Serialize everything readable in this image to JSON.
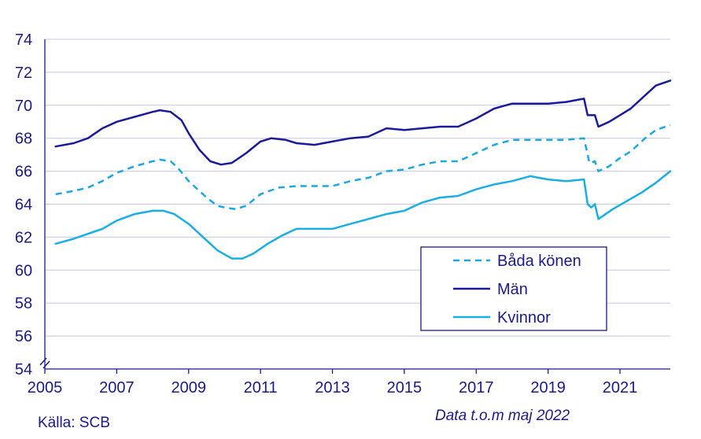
{
  "source": "Källa: SCB",
  "note": "Data t.o.m maj 2022",
  "colors": {
    "axis_text": "#1a1a8c",
    "grid": "#c5c5e6",
    "bada": "#1aa7e6",
    "man": "#1a1a9c",
    "kvinnor": "#1aaee6"
  },
  "chart_data": {
    "type": "line",
    "title": "",
    "xlabel": "",
    "ylabel": "",
    "xlim": [
      2005,
      2022.4
    ],
    "ylim": [
      54,
      74
    ],
    "x_ticks": [
      "2005",
      "2007",
      "2009",
      "2011",
      "2013",
      "2015",
      "2017",
      "2019",
      "2021"
    ],
    "y_ticks": [
      "54",
      "56",
      "58",
      "60",
      "62",
      "64",
      "66",
      "68",
      "70",
      "72",
      "74"
    ],
    "grid": true,
    "axis_break": true,
    "legend_position": "bottom-right",
    "series": [
      {
        "name": "Båda könen",
        "style": "dashed",
        "points": [
          [
            2005.3,
            64.6
          ],
          [
            2005.8,
            64.8
          ],
          [
            2006.2,
            65.0
          ],
          [
            2006.6,
            65.4
          ],
          [
            2007.0,
            65.9
          ],
          [
            2007.5,
            66.3
          ],
          [
            2008.0,
            66.6
          ],
          [
            2008.2,
            66.7
          ],
          [
            2008.5,
            66.6
          ],
          [
            2008.7,
            66.2
          ],
          [
            2009.0,
            65.4
          ],
          [
            2009.5,
            64.4
          ],
          [
            2009.8,
            63.9
          ],
          [
            2010.0,
            63.8
          ],
          [
            2010.3,
            63.7
          ],
          [
            2010.6,
            63.9
          ],
          [
            2011.0,
            64.6
          ],
          [
            2011.5,
            65.0
          ],
          [
            2012.0,
            65.1
          ],
          [
            2012.5,
            65.1
          ],
          [
            2013.0,
            65.1
          ],
          [
            2013.5,
            65.4
          ],
          [
            2014.0,
            65.6
          ],
          [
            2014.5,
            66.0
          ],
          [
            2015.0,
            66.1
          ],
          [
            2015.5,
            66.4
          ],
          [
            2016.0,
            66.6
          ],
          [
            2016.5,
            66.6
          ],
          [
            2017.0,
            67.1
          ],
          [
            2017.5,
            67.6
          ],
          [
            2018.0,
            67.9
          ],
          [
            2018.5,
            67.9
          ],
          [
            2019.0,
            67.9
          ],
          [
            2019.5,
            67.9
          ],
          [
            2020.0,
            68.0
          ],
          [
            2020.15,
            66.5
          ],
          [
            2020.3,
            66.6
          ],
          [
            2020.4,
            66.0
          ],
          [
            2020.7,
            66.3
          ],
          [
            2021.0,
            66.8
          ],
          [
            2021.3,
            67.2
          ],
          [
            2021.7,
            68.0
          ],
          [
            2022.0,
            68.5
          ],
          [
            2022.4,
            68.8
          ]
        ]
      },
      {
        "name": "Män",
        "style": "solid",
        "points": [
          [
            2005.3,
            67.5
          ],
          [
            2005.8,
            67.7
          ],
          [
            2006.2,
            68.0
          ],
          [
            2006.6,
            68.6
          ],
          [
            2007.0,
            69.0
          ],
          [
            2007.5,
            69.3
          ],
          [
            2008.0,
            69.6
          ],
          [
            2008.2,
            69.7
          ],
          [
            2008.5,
            69.6
          ],
          [
            2008.8,
            69.1
          ],
          [
            2009.0,
            68.3
          ],
          [
            2009.3,
            67.3
          ],
          [
            2009.6,
            66.6
          ],
          [
            2009.9,
            66.4
          ],
          [
            2010.2,
            66.5
          ],
          [
            2010.6,
            67.1
          ],
          [
            2011.0,
            67.8
          ],
          [
            2011.3,
            68.0
          ],
          [
            2011.7,
            67.9
          ],
          [
            2012.0,
            67.7
          ],
          [
            2012.5,
            67.6
          ],
          [
            2013.0,
            67.8
          ],
          [
            2013.5,
            68.0
          ],
          [
            2014.0,
            68.1
          ],
          [
            2014.5,
            68.6
          ],
          [
            2015.0,
            68.5
          ],
          [
            2015.5,
            68.6
          ],
          [
            2016.0,
            68.7
          ],
          [
            2016.5,
            68.7
          ],
          [
            2017.0,
            69.2
          ],
          [
            2017.5,
            69.8
          ],
          [
            2018.0,
            70.1
          ],
          [
            2018.5,
            70.1
          ],
          [
            2019.0,
            70.1
          ],
          [
            2019.5,
            70.2
          ],
          [
            2020.0,
            70.4
          ],
          [
            2020.1,
            69.4
          ],
          [
            2020.3,
            69.4
          ],
          [
            2020.4,
            68.7
          ],
          [
            2020.7,
            69.0
          ],
          [
            2021.0,
            69.4
          ],
          [
            2021.3,
            69.8
          ],
          [
            2021.7,
            70.6
          ],
          [
            2022.0,
            71.2
          ],
          [
            2022.4,
            71.5
          ]
        ]
      },
      {
        "name": "Kvinnor",
        "style": "solid",
        "points": [
          [
            2005.3,
            61.6
          ],
          [
            2005.8,
            61.9
          ],
          [
            2006.2,
            62.2
          ],
          [
            2006.6,
            62.5
          ],
          [
            2007.0,
            63.0
          ],
          [
            2007.5,
            63.4
          ],
          [
            2008.0,
            63.6
          ],
          [
            2008.3,
            63.6
          ],
          [
            2008.6,
            63.4
          ],
          [
            2009.0,
            62.8
          ],
          [
            2009.5,
            61.8
          ],
          [
            2009.8,
            61.2
          ],
          [
            2010.2,
            60.7
          ],
          [
            2010.5,
            60.7
          ],
          [
            2010.8,
            61.0
          ],
          [
            2011.2,
            61.6
          ],
          [
            2011.6,
            62.1
          ],
          [
            2012.0,
            62.5
          ],
          [
            2012.5,
            62.5
          ],
          [
            2013.0,
            62.5
          ],
          [
            2013.5,
            62.8
          ],
          [
            2014.0,
            63.1
          ],
          [
            2014.5,
            63.4
          ],
          [
            2015.0,
            63.6
          ],
          [
            2015.5,
            64.1
          ],
          [
            2016.0,
            64.4
          ],
          [
            2016.5,
            64.5
          ],
          [
            2017.0,
            64.9
          ],
          [
            2017.5,
            65.2
          ],
          [
            2018.0,
            65.4
          ],
          [
            2018.5,
            65.7
          ],
          [
            2019.0,
            65.5
          ],
          [
            2019.5,
            65.4
          ],
          [
            2020.0,
            65.5
          ],
          [
            2020.1,
            64.0
          ],
          [
            2020.2,
            63.8
          ],
          [
            2020.3,
            64.0
          ],
          [
            2020.4,
            63.1
          ],
          [
            2020.8,
            63.7
          ],
          [
            2021.2,
            64.2
          ],
          [
            2021.6,
            64.7
          ],
          [
            2022.0,
            65.3
          ],
          [
            2022.4,
            66.0
          ]
        ]
      }
    ]
  }
}
